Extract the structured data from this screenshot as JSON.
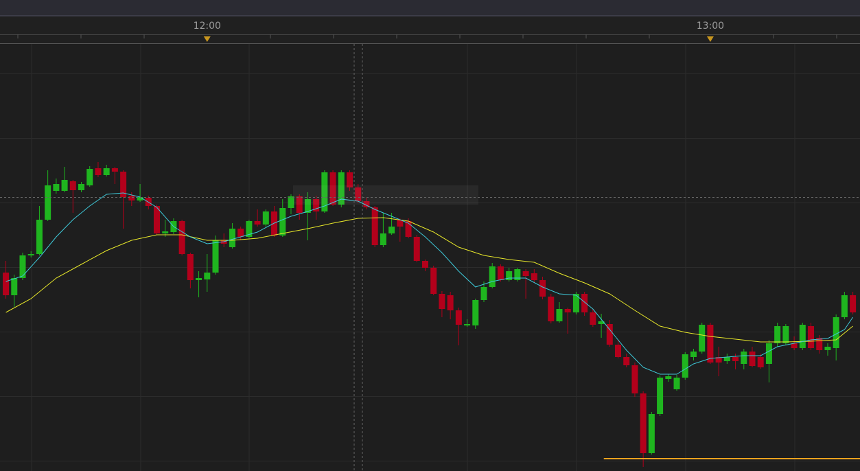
{
  "chart_data": {
    "type": "candlestick",
    "x": [
      696,
      697,
      698,
      699,
      700,
      701,
      702,
      703,
      704,
      705,
      706,
      707,
      708,
      709,
      710,
      711,
      712,
      713,
      714,
      715,
      716,
      717,
      718,
      719,
      720,
      721,
      722,
      723,
      724,
      725,
      726,
      727,
      728,
      729,
      730,
      731,
      732,
      733,
      734,
      735,
      736,
      737,
      738,
      739,
      740,
      741,
      742,
      743,
      744,
      745,
      746,
      747,
      748,
      749,
      750,
      751,
      752,
      753,
      754,
      755,
      756,
      757,
      758,
      759,
      760,
      761,
      762,
      763,
      764,
      765,
      766,
      767,
      768,
      769,
      770,
      771,
      772,
      773,
      774,
      775,
      776,
      777,
      778,
      779,
      780,
      781,
      782,
      783,
      784,
      785,
      786,
      787,
      788,
      789,
      790,
      791,
      792,
      793,
      794,
      795,
      796,
      797
    ],
    "open": [
      289,
      256,
      281,
      314,
      316,
      366,
      408,
      408,
      422,
      409,
      416,
      441,
      431,
      441,
      436,
      401,
      394,
      398,
      386,
      346,
      348,
      364,
      316,
      278,
      279,
      289,
      336,
      326,
      353,
      341,
      364,
      359,
      378,
      343,
      383,
      400,
      376,
      396,
      378,
      435,
      388,
      435,
      413,
      393,
      384,
      329,
      346,
      366,
      364,
      341,
      306,
      296,
      258,
      256,
      234,
      212,
      212,
      249,
      268,
      298,
      278,
      278,
      291,
      288,
      278,
      254,
      218,
      236,
      231,
      258,
      231,
      214,
      214,
      184,
      166,
      154,
      113,
      26,
      83,
      134,
      119,
      136,
      166,
      174,
      213,
      166,
      160,
      166,
      156,
      174,
      166,
      156,
      186,
      186,
      186,
      179,
      211,
      194,
      176,
      179,
      224,
      256
    ],
    "high": [
      306,
      286,
      318,
      320,
      386,
      438,
      426,
      443,
      424,
      421,
      444,
      450,
      446,
      443,
      438,
      406,
      418,
      401,
      388,
      366,
      368,
      366,
      318,
      291,
      316,
      343,
      346,
      361,
      356,
      366,
      381,
      381,
      386,
      396,
      403,
      403,
      406,
      401,
      438,
      438,
      438,
      438,
      418,
      398,
      386,
      376,
      376,
      368,
      368,
      344,
      308,
      299,
      262,
      261,
      238,
      221,
      251,
      276,
      303,
      301,
      296,
      296,
      294,
      294,
      283,
      258,
      246,
      238,
      261,
      261,
      236,
      229,
      220,
      191,
      171,
      158,
      116,
      86,
      139,
      141,
      140,
      173,
      178,
      216,
      216,
      181,
      171,
      171,
      178,
      181,
      171,
      191,
      216,
      214,
      196,
      216,
      216,
      198,
      186,
      228,
      261,
      261
    ],
    "low": [
      251,
      239,
      278,
      311,
      314,
      364,
      404,
      406,
      376,
      406,
      414,
      428,
      429,
      418,
      353,
      386,
      392,
      381,
      344,
      341,
      345,
      314,
      266,
      253,
      261,
      286,
      326,
      324,
      336,
      339,
      356,
      356,
      341,
      341,
      374,
      366,
      336,
      366,
      376,
      386,
      384,
      408,
      390,
      381,
      326,
      326,
      344,
      334,
      339,
      304,
      291,
      256,
      224,
      221,
      183,
      210,
      207,
      246,
      266,
      276,
      276,
      276,
      251,
      274,
      250,
      215,
      216,
      200,
      228,
      226,
      210,
      194,
      181,
      164,
      151,
      108,
      6,
      24,
      80,
      130,
      117,
      133,
      161,
      171,
      156,
      138,
      156,
      148,
      148,
      151,
      149,
      129,
      181,
      184,
      176,
      176,
      176,
      171,
      168,
      161,
      221,
      228
    ],
    "close": [
      256,
      281,
      314,
      316,
      366,
      416,
      418,
      424,
      409,
      418,
      440,
      431,
      441,
      436,
      399,
      394,
      399,
      386,
      346,
      349,
      364,
      316,
      278,
      281,
      289,
      336,
      331,
      353,
      341,
      364,
      359,
      378,
      343,
      383,
      400,
      376,
      396,
      378,
      435,
      388,
      435,
      413,
      393,
      384,
      329,
      346,
      356,
      356,
      341,
      306,
      296,
      258,
      236,
      234,
      213,
      214,
      249,
      268,
      298,
      278,
      291,
      294,
      284,
      278,
      254,
      218,
      236,
      231,
      258,
      231,
      213,
      218,
      184,
      166,
      154,
      113,
      26,
      83,
      136,
      138,
      136,
      170,
      174,
      213,
      158,
      158,
      166,
      160,
      174,
      153,
      151,
      186,
      211,
      211,
      179,
      213,
      179,
      176,
      181,
      224,
      256,
      231
    ],
    "up_color": "#1fb51f",
    "down_color": "#b3001b",
    "moving_averages": [
      {
        "color": "#e8e82a",
        "x": [
          696,
          699,
          702,
          705,
          708,
          711,
          714,
          717,
          720,
          723,
          726,
          729,
          732,
          735,
          738,
          741,
          744,
          747,
          750,
          753,
          756,
          759,
          762,
          765,
          768,
          771,
          774,
          777,
          780,
          783,
          786,
          789,
          792,
          795,
          797
        ],
        "values": [
          231,
          251,
          281,
          301,
          321,
          336,
          344,
          344,
          336,
          336,
          339,
          346,
          353,
          361,
          368,
          369,
          364,
          348,
          326,
          314,
          308,
          304,
          288,
          274,
          258,
          234,
          211,
          202,
          196,
          192,
          188,
          188,
          189,
          191,
          211
        ]
      },
      {
        "color": "#3ec8d8",
        "x": [
          696,
          698,
          700,
          702,
          704,
          706,
          708,
          710,
          712,
          714,
          716,
          718,
          720,
          722,
          724,
          726,
          728,
          730,
          732,
          734,
          736,
          738,
          740,
          742,
          744,
          746,
          748,
          750,
          752,
          754,
          756,
          758,
          760,
          762,
          764,
          766,
          768,
          770,
          772,
          774,
          776,
          778,
          780,
          782,
          784,
          786,
          788,
          790,
          792,
          794,
          796,
          797
        ],
        "values": [
          276,
          284,
          311,
          341,
          366,
          386,
          403,
          405,
          399,
          384,
          356,
          341,
          331,
          334,
          341,
          348,
          361,
          371,
          378,
          386,
          396,
          393,
          381,
          371,
          361,
          341,
          318,
          291,
          268,
          276,
          281,
          281,
          268,
          258,
          256,
          236,
          206,
          176,
          151,
          141,
          141,
          156,
          164,
          166,
          168,
          168,
          181,
          186,
          191,
          193,
          206,
          224
        ]
      }
    ],
    "level": {
      "value": 18,
      "xstart": 767.3,
      "color": "#f0a21e"
    },
    "xlim": [
      695.3,
      797.85
    ],
    "ylim": [
      0,
      622
    ],
    "xticks": [
      {
        "value": 720,
        "label": "12:00"
      },
      {
        "value": 780,
        "label": "13:00"
      }
    ],
    "yticks": [
      15,
      109,
      203,
      297,
      391,
      485,
      579
    ],
    "grid": true
  }
}
